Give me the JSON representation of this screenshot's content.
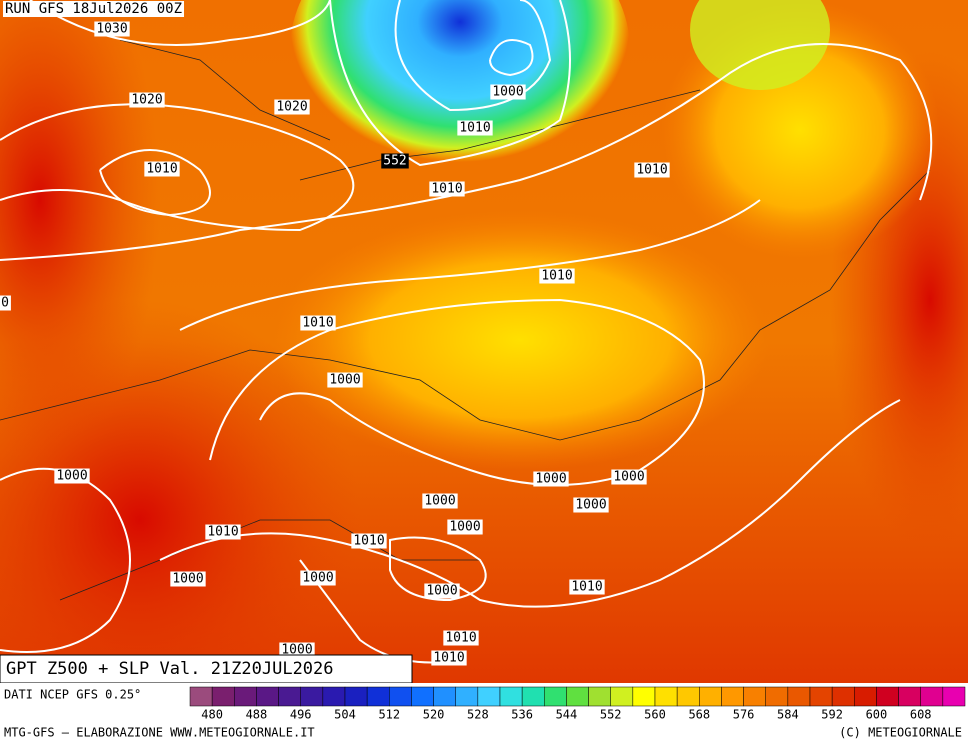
{
  "header": {
    "run": "RUN GFS 18Jul2026 00Z"
  },
  "isobar_labels": [
    1030,
    1020,
    1020,
    1010,
    1000,
    1010,
    1010,
    1010,
    1010,
    1010,
    1000,
    0,
    1000,
    1000,
    1000,
    1000,
    1000,
    1000,
    1010,
    1010,
    1000,
    1000,
    1000,
    1010,
    1010,
    1000,
    1010
  ],
  "height_label": 552,
  "title": "GPT Z500 + SLP Val. 21Z20JUL2026",
  "source": "DATI NCEP GFS 0.25°",
  "legend": {
    "ticks": [
      480,
      488,
      496,
      504,
      512,
      520,
      528,
      536,
      544,
      552,
      560,
      568,
      576,
      584,
      592,
      600,
      608
    ],
    "colors": [
      "#9b4b7d",
      "#7a1f6e",
      "#6a1a7a",
      "#5a1886",
      "#4a1a92",
      "#3a1aa0",
      "#2a1ab0",
      "#1a20c0",
      "#1030d8",
      "#1050f0",
      "#1070ff",
      "#2090ff",
      "#30b0ff",
      "#40d0ff",
      "#30e0e0",
      "#20e0b0",
      "#30e070",
      "#60e040",
      "#a0e030",
      "#d0f020",
      "#ffff00",
      "#ffe000",
      "#ffc800",
      "#ffb000",
      "#ff9800",
      "#f88000",
      "#f06c00",
      "#ea5800",
      "#e44400",
      "#de3000",
      "#d81c00",
      "#d00020",
      "#d80060",
      "#e00090",
      "#e800b0"
    ]
  },
  "footer": {
    "left": "MTG-GFS — ELABORAZIONE WWW.METEOGIORNALE.IT",
    "right": "(C) METEOGIORNALE"
  }
}
